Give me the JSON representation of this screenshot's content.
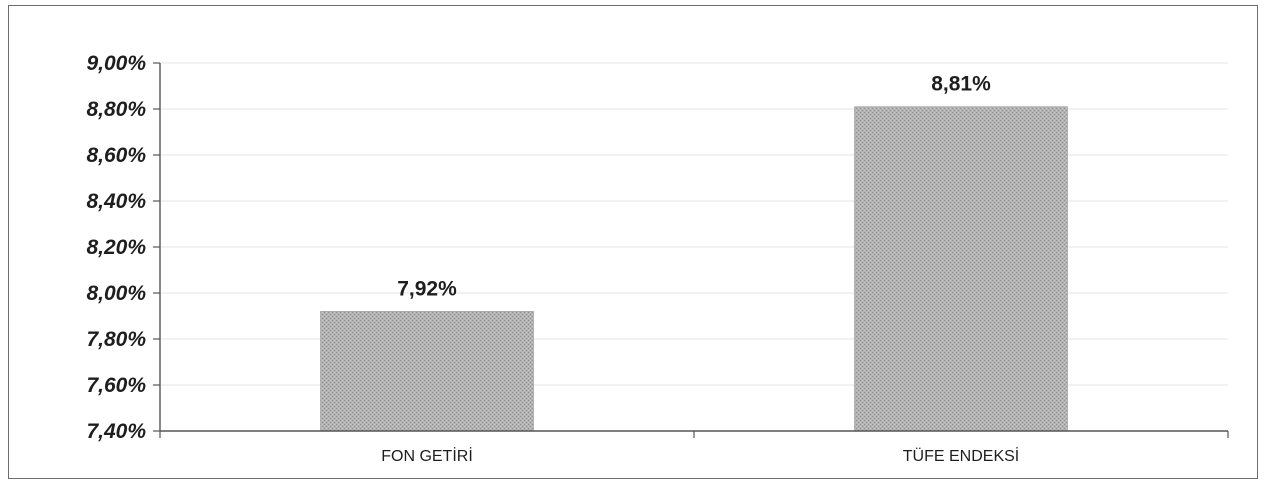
{
  "chart_data": {
    "type": "bar",
    "categories": [
      "FON GETİRİ",
      "TÜFE ENDEKSİ"
    ],
    "values": [
      7.92,
      8.81
    ],
    "value_labels": [
      "7,92%",
      "8,81%"
    ],
    "ylim": [
      7.4,
      9.0
    ],
    "y_ticks": [
      7.4,
      7.6,
      7.8,
      8.0,
      8.2,
      8.4,
      8.6,
      8.8,
      9.0
    ],
    "y_tick_labels": [
      "7,40%",
      "7,60%",
      "7,80%",
      "8,00%",
      "8,20%",
      "8,40%",
      "8,60%",
      "8,80%",
      "9,00%"
    ],
    "title": "",
    "xlabel": "",
    "ylabel": "",
    "grid": true,
    "legend": false,
    "colors": {
      "bar": "#a9a9a9",
      "bar_pattern": "#8c8c8c",
      "axis": "#555555",
      "grid": "#e4e4e4"
    }
  }
}
